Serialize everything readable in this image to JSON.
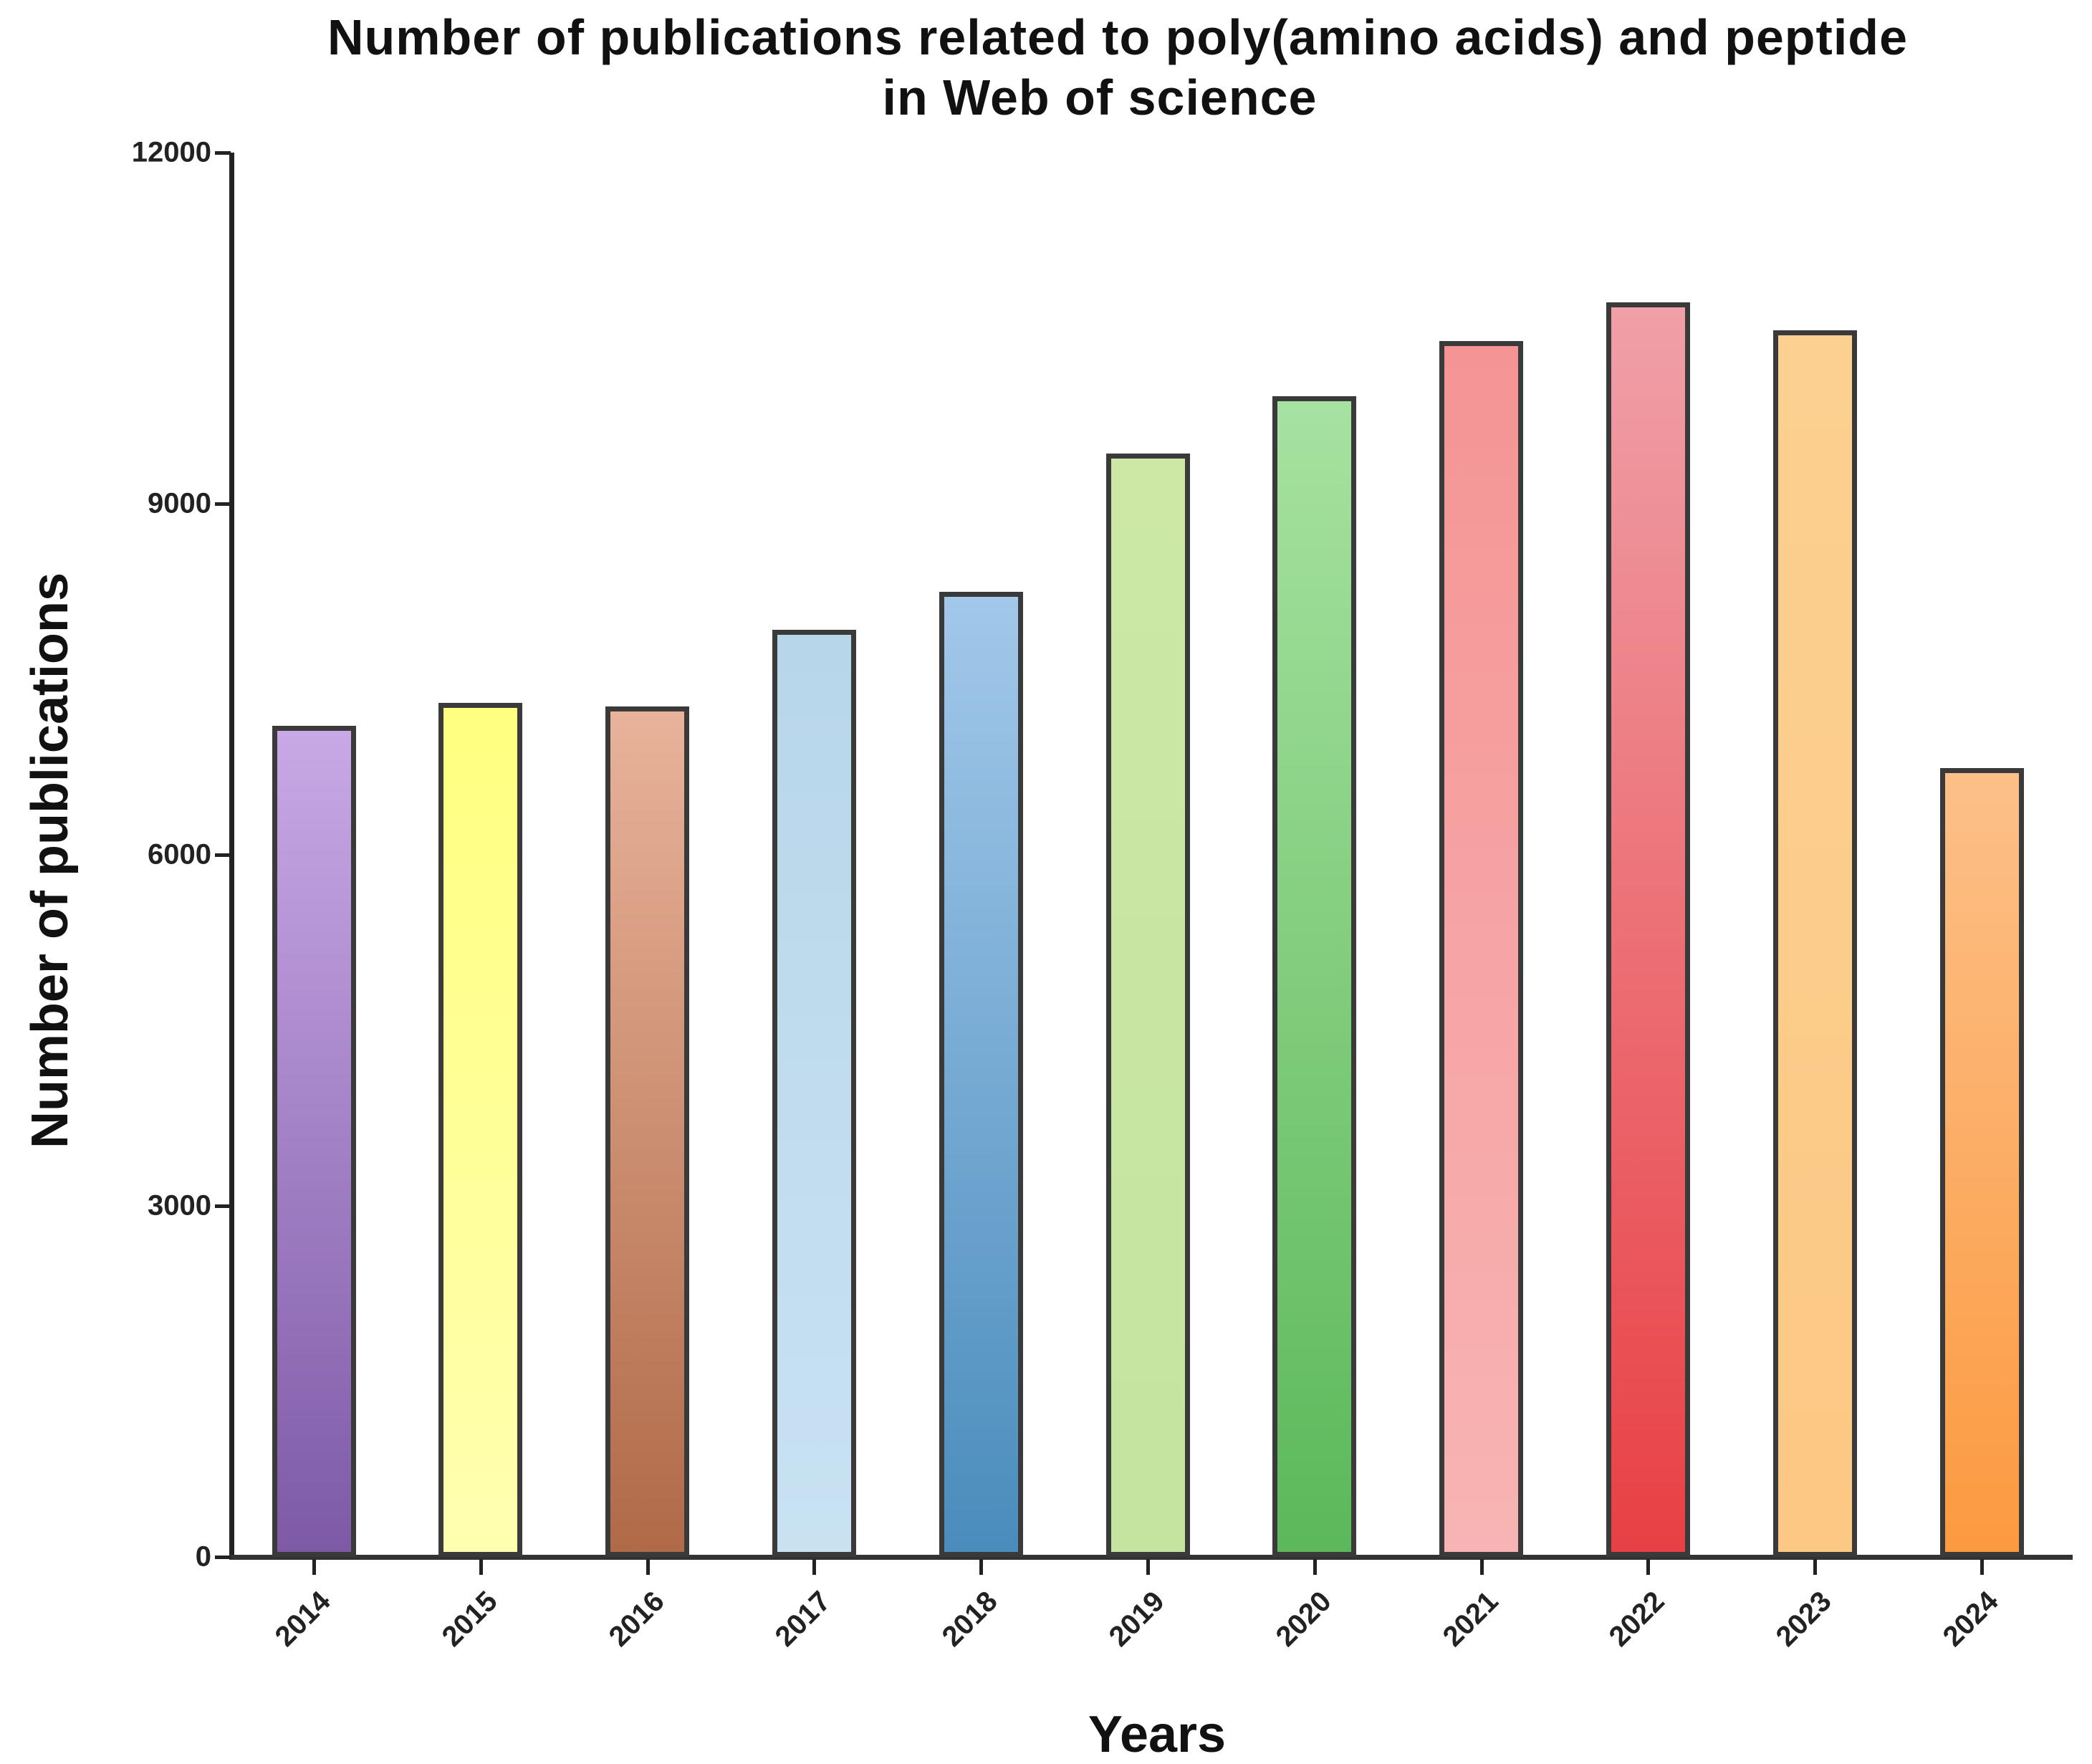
{
  "chart_data": {
    "type": "bar",
    "title": "Number of publications related to poly(amino acids) and peptide in Web of science",
    "title_lines": [
      "Number of publications related to poly(amino acids) and peptide",
      "in Web of science"
    ],
    "xlabel": "Years",
    "ylabel": "Number of publications",
    "categories": [
      "2014",
      "2015",
      "2016",
      "2017",
      "2018",
      "2019",
      "2020",
      "2021",
      "2022",
      "2023",
      "2024"
    ],
    "values": [
      7100,
      7300,
      7270,
      7920,
      8250,
      9430,
      9920,
      10390,
      10720,
      10480,
      6740
    ],
    "ylim": [
      0,
      12000
    ],
    "yticks": [
      "0",
      "3000",
      "6000",
      "9000",
      "12000"
    ],
    "grid": false,
    "legend": null,
    "bar_colors": [
      [
        "#c9a8e6",
        "#7e5aa6"
      ],
      [
        "#ffff80",
        "#ffffb0"
      ],
      [
        "#e8b39a",
        "#b06a48"
      ],
      [
        "#b8d6ea",
        "#c8e2f2"
      ],
      [
        "#a2c8ea",
        "#4a8cbc"
      ],
      [
        "#cce8a4",
        "#c4e4a0"
      ],
      [
        "#a6e2a0",
        "#5cb85a"
      ],
      [
        "#f59494",
        "#f8b4b4"
      ],
      [
        "#f0a0a8",
        "#e84044"
      ],
      [
        "#fcd090",
        "#fcc884"
      ],
      [
        "#fcc088",
        "#fc9a40"
      ]
    ]
  }
}
